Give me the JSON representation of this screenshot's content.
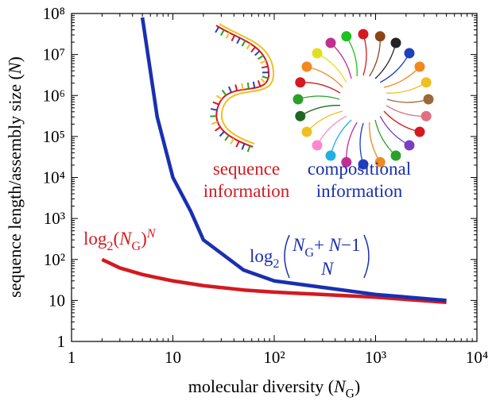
{
  "chart_data": {
    "type": "line",
    "xscale": "log",
    "yscale": "log",
    "xlim": [
      1,
      10000
    ],
    "xticks": [
      1,
      10,
      {
        "value": 100,
        "label": "10²"
      },
      {
        "value": 1000,
        "label": "10³"
      },
      {
        "value": 10000,
        "label": "10⁴"
      }
    ],
    "ylim": [
      1,
      100000000
    ],
    "yticks": [
      1,
      10,
      {
        "value": 100,
        "label": "10²"
      },
      {
        "value": 1000,
        "label": "10³"
      },
      {
        "value": 10000,
        "label": "10⁴"
      },
      {
        "value": 100000,
        "label": "10⁵"
      },
      {
        "value": 1000000,
        "label": "10⁶"
      },
      {
        "value": 10000000,
        "label": "10⁷"
      },
      {
        "value": 100000000,
        "label": "10⁸"
      }
    ],
    "xlabel": [
      {
        "t": "molecular diversity ("
      },
      {
        "t": "N",
        "italic": true
      },
      {
        "t": "G",
        "sub": true
      },
      {
        "t": ")"
      }
    ],
    "ylabel": [
      {
        "t": "sequence length/assembly size ("
      },
      {
        "t": "N",
        "italic": true
      },
      {
        "t": ")"
      }
    ],
    "series": [
      {
        "color": "#d41920",
        "x": [
          2,
          3,
          5,
          7,
          10,
          20,
          50,
          100,
          1000,
          5000
        ],
        "values": [
          100,
          62,
          43,
          36,
          30,
          23,
          18,
          16,
          12,
          9
        ]
      },
      {
        "color": "#1a2fb0",
        "x": [
          5,
          7,
          10,
          15,
          20,
          50,
          100,
          1000,
          5000
        ],
        "values": [
          80000000,
          300000,
          10000,
          1500,
          300,
          55,
          30,
          14,
          10
        ]
      }
    ],
    "annotations": [
      {
        "color": "#d41920",
        "lines": [
          "sequence",
          "information"
        ]
      },
      {
        "color": "#1a2fb0",
        "lines": [
          "compositional",
          "information"
        ]
      }
    ],
    "red_formula": [
      {
        "t": "log"
      },
      {
        "t": "2",
        "sub": true
      },
      {
        "t": "("
      },
      {
        "t": "N",
        "italic": true
      },
      {
        "t": "G",
        "sub": true
      },
      {
        "t": ")"
      },
      {
        "t": "N",
        "sup": true,
        "italic": true
      }
    ],
    "blue_formula": {
      "prefix": [
        {
          "t": "log"
        },
        {
          "t": "2",
          "sub": true
        }
      ],
      "top": [
        {
          "t": "N",
          "italic": true
        },
        {
          "t": "G",
          "sub": true
        },
        {
          "t": "+ "
        },
        {
          "t": "N",
          "italic": true
        },
        {
          "t": "−1"
        }
      ],
      "bottom": [
        {
          "t": "N",
          "italic": true
        }
      ]
    }
  }
}
